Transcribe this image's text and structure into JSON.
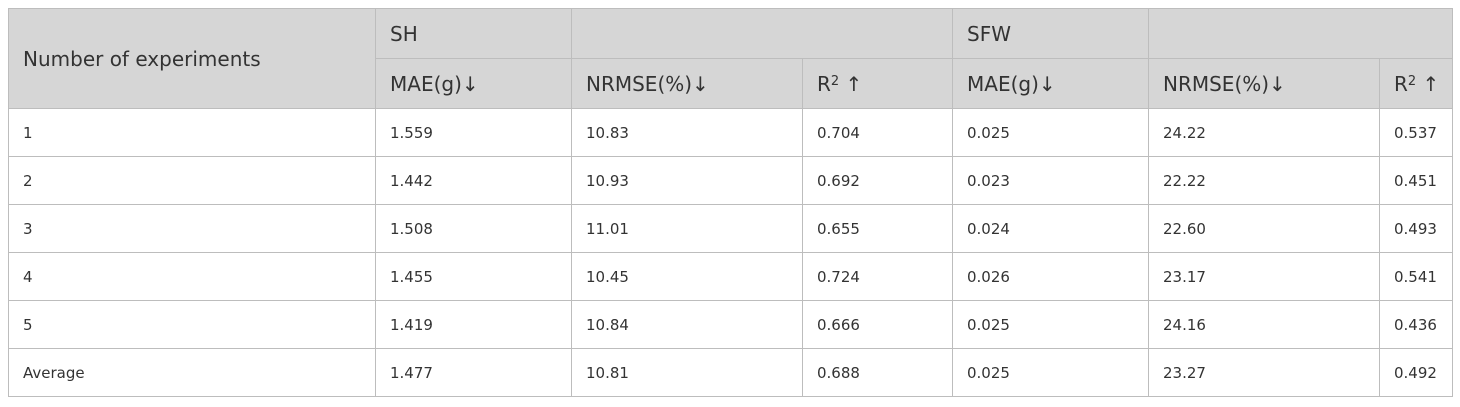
{
  "table": {
    "corner": "Number of experiments",
    "groups": [
      "SH",
      "SFW"
    ],
    "subheaders": [
      {
        "text": "MAE(g)↓"
      },
      {
        "text": "NRMSE(%)↓"
      },
      {
        "base": "R",
        "sup": "2",
        "tail": " ↑"
      },
      {
        "text": "MAE(g)↓"
      },
      {
        "text": "NRMSE(%)↓"
      },
      {
        "base": "R",
        "sup": "2",
        "tail": " ↑"
      }
    ],
    "rows": [
      [
        "1",
        "1.559",
        "10.83",
        "0.704",
        "0.025",
        "24.22",
        "0.537"
      ],
      [
        "2",
        "1.442",
        "10.93",
        "0.692",
        "0.023",
        "22.22",
        "0.451"
      ],
      [
        "3",
        "1.508",
        "11.01",
        "0.655",
        "0.024",
        "22.60",
        "0.493"
      ],
      [
        "4",
        "1.455",
        "10.45",
        "0.724",
        "0.026",
        "23.17",
        "0.541"
      ],
      [
        "5",
        "1.419",
        "10.84",
        "0.666",
        "0.025",
        "24.16",
        "0.436"
      ],
      [
        "Average",
        "1.477",
        "10.81",
        "0.688",
        "0.025",
        "23.27",
        "0.492"
      ]
    ]
  }
}
